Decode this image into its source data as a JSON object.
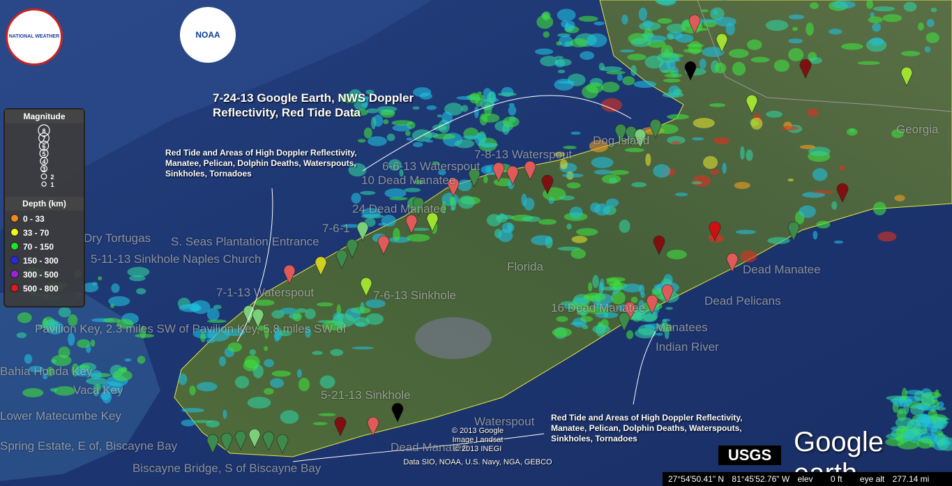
{
  "logos": {
    "nws": "NATIONAL WEATHER SERVICE",
    "noaa": "NOAA",
    "usgs": "USGS",
    "google_earth": "Google earth"
  },
  "title": "7-24-13 Google Earth, NWS Doppler Reflectivity, Red Tide Data",
  "annotations": [
    "Red Tide and Areas of High Doppler Reflectivity, Manatee, Pelican, Dolphin Deaths, Waterspouts, Sinkholes, Tornadoes",
    "Red Tide and Areas of High Doppler Reflectivity, Manatee, Pelican, Dolphin Deaths, Waterspouts, Sinkholes, Tornadoes"
  ],
  "legend": {
    "magnitude_title": "Magnitude",
    "magnitudes": [
      "8",
      "7",
      "6",
      "5",
      "4",
      "3",
      "2",
      "1"
    ],
    "depth_title": "Depth (km)",
    "depths": [
      {
        "label": "0 - 33",
        "color": "#f08a1c"
      },
      {
        "label": "33 - 70",
        "color": "#f4f41c"
      },
      {
        "label": "70 - 150",
        "color": "#22e022"
      },
      {
        "label": "150 - 300",
        "color": "#2828e8"
      },
      {
        "label": "300 - 500",
        "color": "#a020e0"
      },
      {
        "label": "500 - 800",
        "color": "#e01818"
      }
    ]
  },
  "place_labels": [
    "7-8-13 Waterspout",
    "6-6-13 Waterspout",
    "10 Dead Manatee",
    "24 Dead Manatee",
    "7-6-1",
    "S. Seas Plantation Entrance",
    "5-11-13 Sinkhole Naples Church",
    "Florida",
    "7-1-13 Waterspout",
    "7-6-13 Sinkhole",
    "Pavilion Key, 2.3 miles SW of Pavilion Key, 5.8 miles SW of",
    "Bahia Honda Key",
    "Vaca Key",
    "Lower Matecumbe Key",
    "Spring Estate, E of, Biscayne Bay",
    "Biscayne Bridge, S of Biscayne Bay",
    "5-21-13 Sinkhole",
    "Waterspout",
    "Dead Manatee",
    "16 Dead Manatee",
    "Dead Manatee",
    "Dead Pelicans",
    "Manatees",
    "Indian River",
    "Dog Island",
    "Dry Tortugas",
    "Georgia"
  ],
  "attribution": [
    "© 2013 Google",
    "Image Landsat",
    "© 2013 INEGI",
    "Data SIO, NOAA, U.S. Navy, NGA, GEBCO"
  ],
  "status_bar": {
    "lat": "27°54'50.41\" N",
    "lon": "81°45'52.76\" W",
    "elev_label": "elev",
    "elev": "0 ft",
    "eye_alt_label": "eye alt",
    "eye_alt": "277.14 mi"
  }
}
